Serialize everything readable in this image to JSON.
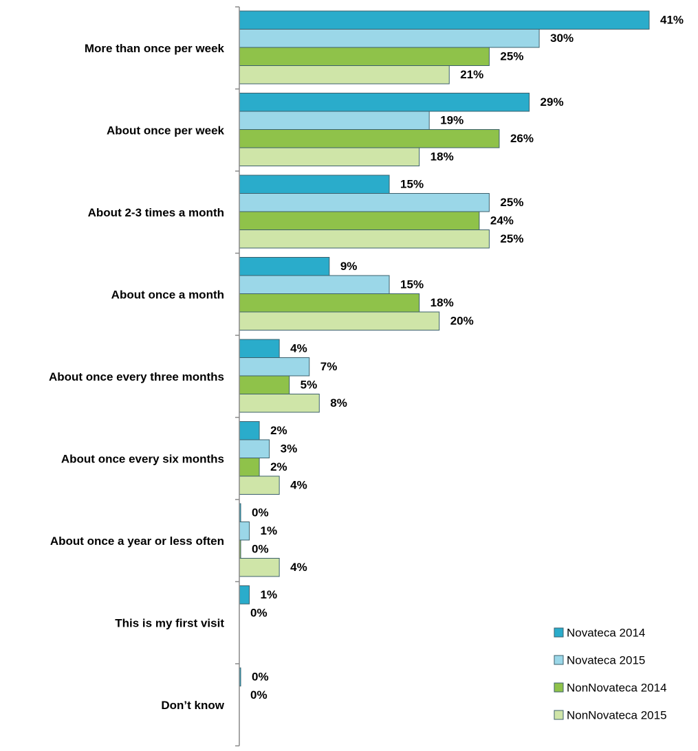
{
  "chart_data": {
    "type": "bar",
    "orientation": "horizontal",
    "categories": [
      "More than once per week",
      "About once per week",
      "About 2-3 times a month",
      "About once a month",
      "About once every three months",
      "About once every six months",
      "About once a year or less often",
      "This is my first visit",
      "Don’t know"
    ],
    "series": [
      {
        "name": "Novateca 2014",
        "color": "#2aaccb",
        "values": [
          41,
          29,
          15,
          9,
          4,
          2,
          0,
          1,
          0
        ],
        "labels": [
          "41%",
          "29%",
          "15%",
          "9%",
          "4%",
          "2%",
          "0%",
          "1%",
          "0%"
        ]
      },
      {
        "name": "Novateca 2015",
        "color": "#9bd7e8",
        "values": [
          30,
          19,
          25,
          15,
          7,
          3,
          1,
          null,
          null
        ],
        "labels": [
          "30%",
          "19%",
          "25%",
          "15%",
          "7%",
          "3%",
          "1%",
          "0%",
          "0%"
        ]
      },
      {
        "name": "NonNovateca 2014",
        "color": "#8fc24a",
        "values": [
          25,
          26,
          24,
          18,
          5,
          2,
          0,
          null,
          null
        ],
        "labels": [
          "25%",
          "26%",
          "24%",
          "18%",
          "5%",
          "2%",
          "0%",
          "",
          ""
        ]
      },
      {
        "name": "NonNovateca 2015",
        "color": "#cfe5a8",
        "values": [
          21,
          18,
          25,
          20,
          8,
          4,
          4,
          null,
          null
        ],
        "labels": [
          "21%",
          "18%",
          "25%",
          "20%",
          "8%",
          "4%",
          "4%",
          "",
          ""
        ]
      }
    ],
    "xlim": [
      0,
      41
    ],
    "grid": false,
    "legend": "bottom-right"
  }
}
